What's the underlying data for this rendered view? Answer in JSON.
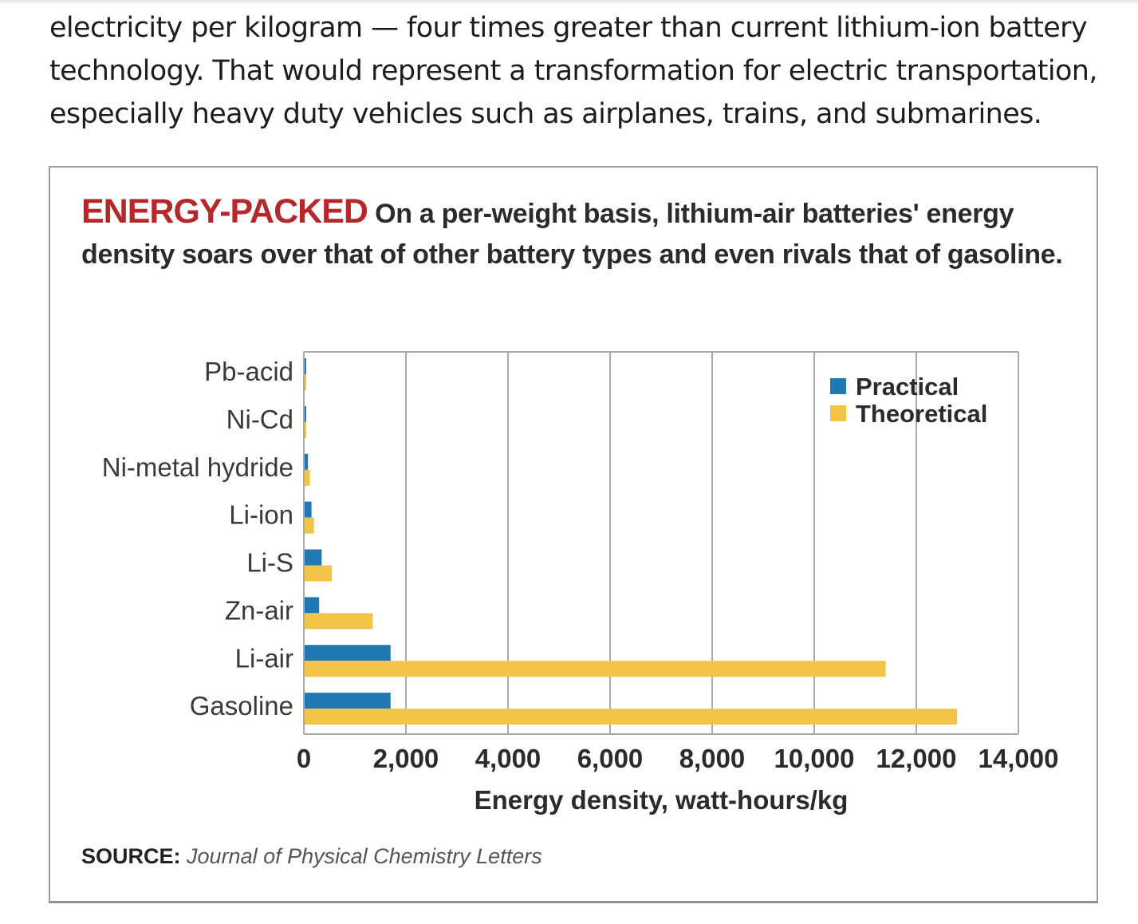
{
  "article": {
    "lines": [
      "electricity per kilogram — four times greater than current lithium-ion battery",
      "technology. That would represent a transformation for electric transportation,",
      "especially heavy duty vehicles such as airplanes, trains, and submarines."
    ]
  },
  "figure": {
    "title": "ENERGY-PACKED",
    "caption": "On a per-weight basis, lithium-air batteries' energy density soars over that of other battery types and even rivals that of gasoline.",
    "source_label": "SOURCE:",
    "source_text": "Journal of Physical Chemistry Letters"
  },
  "chart_data": {
    "type": "bar",
    "orientation": "horizontal",
    "categories": [
      "Pb-acid",
      "Ni-Cd",
      "Ni-metal hydride",
      "Li-ion",
      "Li-S",
      "Zn-air",
      "Li-air",
      "Gasoline"
    ],
    "series": [
      {
        "name": "Practical",
        "color": "#2179b4",
        "values": [
          35,
          40,
          80,
          150,
          350,
          300,
          1700,
          1700
        ]
      },
      {
        "name": "Theoretical",
        "color": "#f2c447",
        "values": [
          40,
          50,
          120,
          200,
          550,
          1350,
          11400,
          12800
        ]
      }
    ],
    "xlabel": "Energy density, watt-hours/kg",
    "ylabel": "",
    "xlim": [
      0,
      14000
    ],
    "xticks": [
      0,
      2000,
      4000,
      6000,
      8000,
      10000,
      12000,
      14000
    ],
    "xtick_labels": [
      "0",
      "2,000",
      "4,000",
      "6,000",
      "8,000",
      "10,000",
      "12,000",
      "14,000"
    ],
    "grid": "vertical",
    "legend": "top-right"
  }
}
